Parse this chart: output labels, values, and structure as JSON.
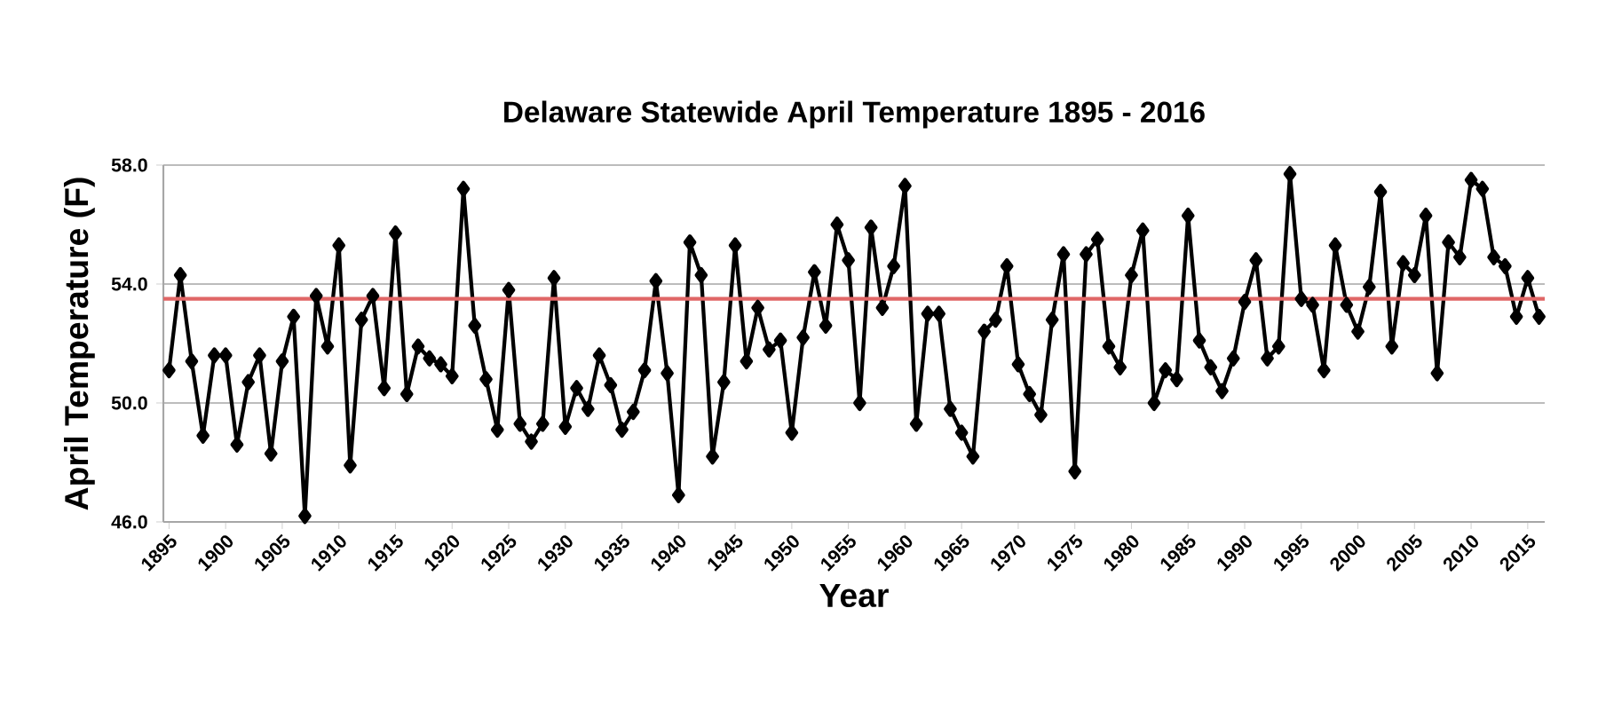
{
  "chart_data": {
    "type": "line",
    "title": "Delaware Statewide April Temperature 1895 - 2016",
    "xlabel": "Year",
    "ylabel": "April Temperature (F)",
    "x": [
      1895,
      1896,
      1897,
      1898,
      1899,
      1900,
      1901,
      1902,
      1903,
      1904,
      1905,
      1906,
      1907,
      1908,
      1909,
      1910,
      1911,
      1912,
      1913,
      1914,
      1915,
      1916,
      1917,
      1918,
      1919,
      1920,
      1921,
      1922,
      1923,
      1924,
      1925,
      1926,
      1927,
      1928,
      1929,
      1930,
      1931,
      1932,
      1933,
      1934,
      1935,
      1936,
      1937,
      1938,
      1939,
      1940,
      1941,
      1942,
      1943,
      1944,
      1945,
      1946,
      1947,
      1948,
      1949,
      1950,
      1951,
      1952,
      1953,
      1954,
      1955,
      1956,
      1957,
      1958,
      1959,
      1960,
      1961,
      1962,
      1963,
      1964,
      1965,
      1966,
      1967,
      1968,
      1969,
      1970,
      1971,
      1972,
      1973,
      1974,
      1975,
      1976,
      1977,
      1978,
      1979,
      1980,
      1981,
      1982,
      1983,
      1984,
      1985,
      1986,
      1987,
      1988,
      1989,
      1990,
      1991,
      1992,
      1993,
      1994,
      1995,
      1996,
      1997,
      1998,
      1999,
      2000,
      2001,
      2002,
      2003,
      2004,
      2005,
      2006,
      2007,
      2008,
      2009,
      2010,
      2011,
      2012,
      2013,
      2014,
      2015,
      2016
    ],
    "series": [
      {
        "color": "#000000",
        "values": [
          51.1,
          54.3,
          51.4,
          48.9,
          51.6,
          51.6,
          48.6,
          50.7,
          51.6,
          48.3,
          51.4,
          52.9,
          46.2,
          53.6,
          51.9,
          55.3,
          47.9,
          52.8,
          53.6,
          50.5,
          55.7,
          50.3,
          51.9,
          51.5,
          51.3,
          50.9,
          57.2,
          52.6,
          50.8,
          49.1,
          53.8,
          49.3,
          48.7,
          49.3,
          54.2,
          49.2,
          50.5,
          49.8,
          51.6,
          50.6,
          49.1,
          49.7,
          51.1,
          54.1,
          51.0,
          46.9,
          55.4,
          54.3,
          48.2,
          50.7,
          55.3,
          51.4,
          53.2,
          51.8,
          52.1,
          49.0,
          52.2,
          54.4,
          52.6,
          56.0,
          54.8,
          50.0,
          55.9,
          53.2,
          54.6,
          57.3,
          49.3,
          53.0,
          53.0,
          49.8,
          49.0,
          48.2,
          52.4,
          52.8,
          54.6,
          51.3,
          50.3,
          49.6,
          52.8,
          55.0,
          47.7,
          55.0,
          55.5,
          51.9,
          51.2,
          54.3,
          55.8,
          50.0,
          51.1,
          50.8,
          56.3,
          52.1,
          51.2,
          50.4,
          51.5,
          53.4,
          54.8,
          51.5,
          51.9,
          57.7,
          53.5,
          53.3,
          51.1,
          55.3,
          53.3,
          52.4,
          53.9,
          57.1,
          51.9,
          54.7,
          54.3,
          56.3,
          51.0,
          55.4,
          54.9,
          57.5,
          57.2,
          54.9,
          54.6,
          52.9,
          54.2,
          52.9
        ]
      }
    ],
    "xlim": [
      1894.5,
      2016.5
    ],
    "xticks": [
      1895,
      1900,
      1905,
      1910,
      1915,
      1920,
      1925,
      1930,
      1935,
      1940,
      1945,
      1950,
      1955,
      1960,
      1965,
      1970,
      1975,
      1980,
      1985,
      1990,
      1995,
      2000,
      2005,
      2010,
      2015
    ],
    "ylim": [
      46,
      58
    ],
    "yticks": [
      {
        "value": 46,
        "label": "46.0"
      },
      {
        "value": 50,
        "label": "50.0"
      },
      {
        "value": 54,
        "label": "54.0"
      },
      {
        "value": 58,
        "label": "58.0"
      }
    ],
    "grid": "y",
    "marker": "diamond",
    "line_style": "solid",
    "ref_lines": [
      {
        "axis": "y",
        "value": 53.5,
        "color": "#e06666"
      }
    ]
  }
}
